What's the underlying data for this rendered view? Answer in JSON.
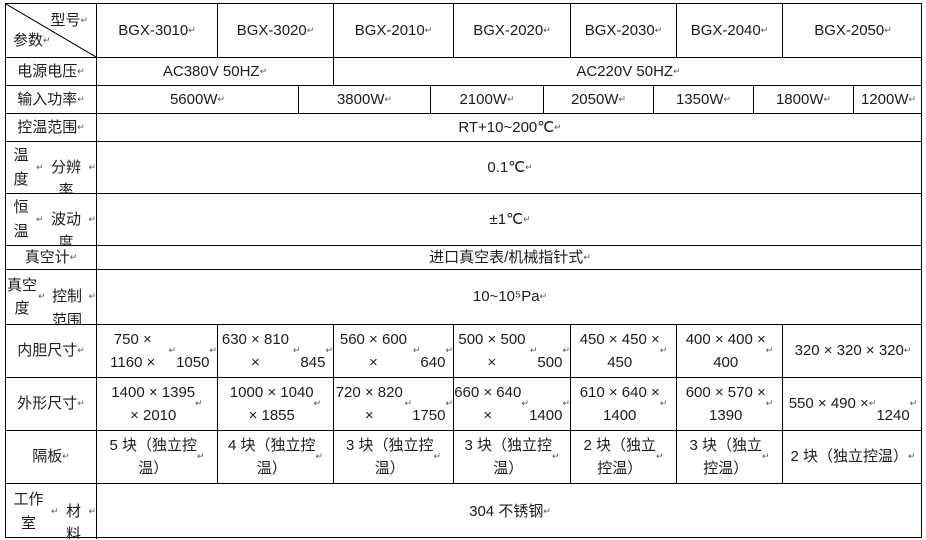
{
  "corner": {
    "top_label": "型号↵",
    "bottom_label": "参数↵"
  },
  "models": [
    "BGX-3010↵",
    "BGX-3020↵",
    "BGX-2010↵",
    "BGX-2020↵",
    "BGX-2030↵",
    "BGX-2040↵",
    "BGX-2050↵"
  ],
  "rows": {
    "voltage": {
      "label": "电源电压↵",
      "cells": [
        "AC380V 50HZ↵",
        "AC220V 50HZ↵"
      ]
    },
    "power": {
      "label": "输入功率↵",
      "cells": [
        "5600W↵",
        "3800W↵",
        "2100W↵",
        "2050W↵",
        "1350W↵",
        "1800W↵",
        "1200W↵"
      ]
    },
    "temp_range": {
      "label": "控温范围↵",
      "value": "RT+10~200℃↵"
    },
    "resolution": {
      "label": "温度↵\n分辨率↵",
      "value": "0.1℃↵"
    },
    "fluctuation": {
      "label": "恒温↵\n波动度↵",
      "value": "±1℃↵"
    },
    "gauge": {
      "label": "真空计↵",
      "value": "进口真空表/机械指针式↵"
    },
    "vacuum_range": {
      "label": "真空度↵\n控制范围↵",
      "value": "10~10⁵Pa↵"
    },
    "inner_size": {
      "label": "内胆尺寸↵",
      "cells": [
        "750 × 1160 × ↵\n1050↵",
        "630 × 810 × ↵\n845↵",
        "560 × 600 × ↵\n640↵",
        "500 × 500 × ↵\n500↵",
        "450 × 450 ×\n450↵",
        "400 × 400 ×\n400↵",
        "320 × 320 × 320↵"
      ]
    },
    "outer_size": {
      "label": "外形尺寸↵",
      "cells": [
        "1400 × 1395\n× 2010↵",
        "1000 × 1040\n× 1855↵",
        "720 × 820 × ↵\n1750↵",
        "660 × 640 × ↵\n1400↵",
        "610 × 640 ×\n1400↵",
        "600 × 570 ×\n1390↵",
        "550 × 490 × ↵\n1240↵"
      ]
    },
    "shelves": {
      "label": "隔板↵",
      "cells": [
        "5 块（独立控\n温） ↵",
        "4 块（独立控\n温） ↵",
        "3 块（独立控\n温） ↵",
        "3 块（独立控\n温） ↵",
        "2 块（独立\n控温） ↵",
        "3 块（独立\n控温） ↵",
        "2 块（独立控温）↵"
      ]
    },
    "material": {
      "label": "工作室↵\n材料↵",
      "value": "304 不锈钢↵"
    }
  },
  "colors": {
    "border": "#000000",
    "text": "#1c1c1c",
    "background": "#ffffff"
  }
}
